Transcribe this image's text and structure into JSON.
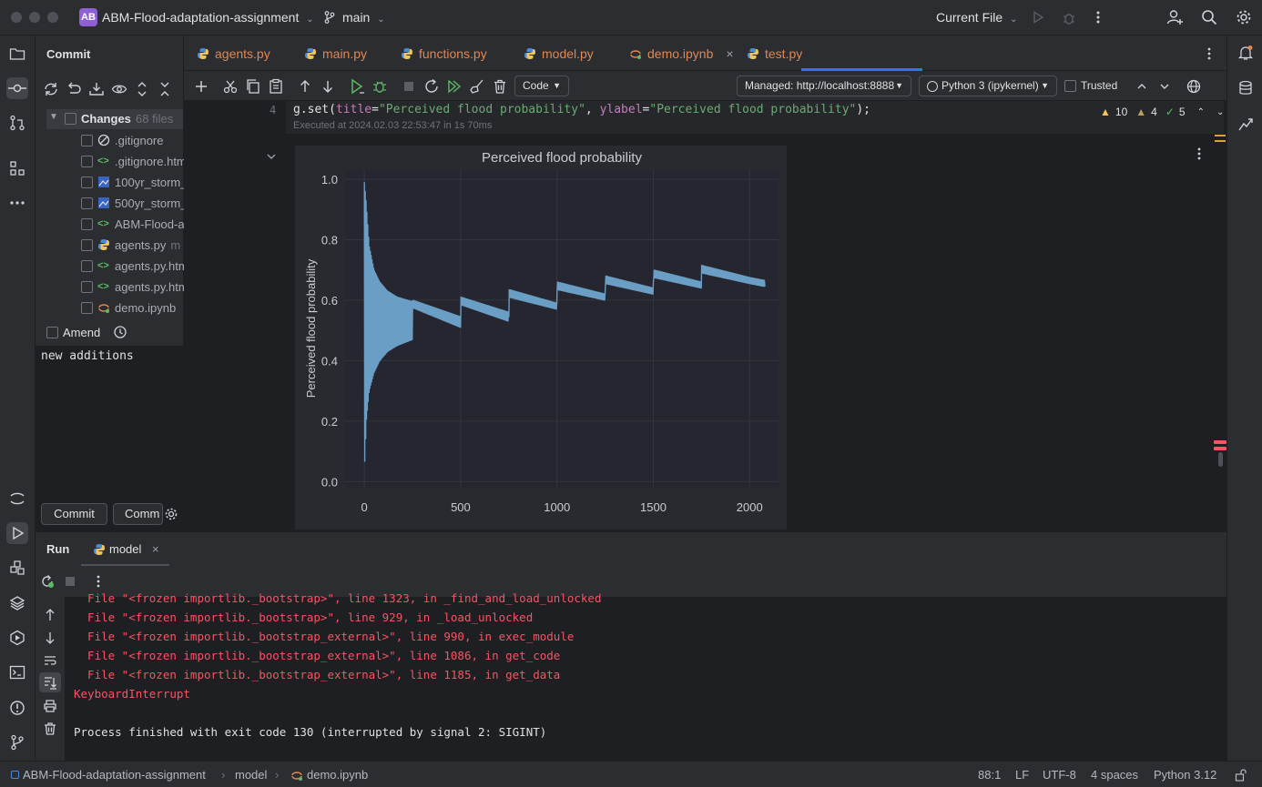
{
  "titlebar": {
    "badge": "AB",
    "project": "ABM-Flood-adaptation-assignment",
    "branch": "main",
    "run_config": "Current File"
  },
  "commit": {
    "title": "Commit",
    "changes_label": "Changes",
    "changes_count": "68 files",
    "files": [
      {
        "name": ".gitignore",
        "extra": "",
        "icon": "ignore-icon"
      },
      {
        "name": ".gitignore.htm",
        "extra": "",
        "icon": "html-icon"
      },
      {
        "name": "100yr_storm_",
        "extra": "",
        "icon": "image-icon"
      },
      {
        "name": "500yr_storm_",
        "extra": "",
        "icon": "image-icon"
      },
      {
        "name": "ABM-Flood-a",
        "extra": "",
        "icon": "html-icon"
      },
      {
        "name": "agents.py",
        "extra": "m",
        "icon": "python-icon"
      },
      {
        "name": "agents.py.htm",
        "extra": "",
        "icon": "html-icon"
      },
      {
        "name": "agents.py.htm",
        "extra": "",
        "icon": "html-icon"
      },
      {
        "name": "demo.ipynb",
        "extra": "",
        "icon": "notebook-icon"
      }
    ],
    "amend_label": "Amend",
    "message": "new additions",
    "commit_button": "Commit",
    "commit_push_button": "Comm"
  },
  "tabs": [
    {
      "label": "agents.py",
      "active": false
    },
    {
      "label": "main.py",
      "active": false
    },
    {
      "label": "functions.py",
      "active": false
    },
    {
      "label": "model.py",
      "active": false
    },
    {
      "label": "demo.ipynb",
      "active": true
    },
    {
      "label": "test.py",
      "active": false
    }
  ],
  "nb_toolbar": {
    "cell_type": "Code",
    "server": "Managed: http://localhost:8888",
    "kernel": "Python 3 (ipykernel)",
    "trusted": "Trusted"
  },
  "inspections": {
    "warnings": "10",
    "weak_warnings": "4",
    "ok": "5"
  },
  "cell": {
    "line_number": "4",
    "code_parts": [
      "g.set(",
      "title",
      "=",
      "\"Perceived flood probability\"",
      ", ",
      "ylabel",
      "=",
      "\"Perceived flood probability\"",
      ");"
    ],
    "exec_info": "Executed at 2024.02.03 22:53:47 in 1s 70ms"
  },
  "chart_data": {
    "type": "line",
    "title": "Perceived flood probability",
    "xlabel": "",
    "ylabel": "Perceived flood probability",
    "xlim": [
      -100,
      2150
    ],
    "ylim": [
      -0.02,
      1.03
    ],
    "xticks": [
      0,
      500,
      1000,
      1500,
      2000
    ],
    "yticks": [
      0.0,
      0.2,
      0.4,
      0.6,
      0.8,
      1.0
    ],
    "grid": true,
    "color": "#6a9ec4",
    "series": [
      {
        "envelope_x": [
          0,
          10,
          25,
          50,
          80,
          120,
          170,
          250,
          251,
          500,
          501,
          750,
          751,
          1000,
          1001,
          1250,
          1251,
          1500,
          1501,
          1750,
          1751,
          2000,
          2080
        ],
        "upper": [
          0.99,
          0.92,
          0.78,
          0.7,
          0.66,
          0.63,
          0.61,
          0.595,
          0.6,
          0.545,
          0.61,
          0.56,
          0.635,
          0.59,
          0.66,
          0.62,
          0.68,
          0.64,
          0.7,
          0.66,
          0.715,
          0.675,
          0.665
        ],
        "lower": [
          0.03,
          0.2,
          0.3,
          0.36,
          0.4,
          0.43,
          0.45,
          0.47,
          0.575,
          0.51,
          0.585,
          0.53,
          0.61,
          0.57,
          0.635,
          0.6,
          0.655,
          0.62,
          0.675,
          0.64,
          0.69,
          0.655,
          0.645
        ]
      }
    ]
  },
  "run": {
    "tab_title": "Run",
    "config": "model",
    "lines": [
      {
        "text": "  File \"<frozen importlib._bootstrap>\", line 1323, in _find_and_load_unlocked",
        "ok": false
      },
      {
        "text": "  File \"<frozen importlib._bootstrap>\", line 929, in _load_unlocked",
        "ok": false
      },
      {
        "text": "  File \"<frozen importlib._bootstrap_external>\", line 990, in exec_module",
        "ok": false
      },
      {
        "text": "  File \"<frozen importlib._bootstrap_external>\", line 1086, in get_code",
        "ok": false
      },
      {
        "text": "  File \"<frozen importlib._bootstrap_external>\", line 1185, in get_data",
        "ok": false
      },
      {
        "text": "KeyboardInterrupt",
        "ok": false
      },
      {
        "text": "",
        "ok": true
      },
      {
        "text": "Process finished with exit code 130 (interrupted by signal 2: SIGINT)",
        "ok": true
      }
    ]
  },
  "statusbar": {
    "crumbs": [
      "ABM-Flood-adaptation-assignment",
      "model",
      "demo.ipynb"
    ],
    "position": "88:1",
    "line_sep": "LF",
    "encoding": "UTF-8",
    "indent": "4 spaces",
    "interpreter": "Python 3.12"
  },
  "colors": {
    "accent": "#3574f0",
    "error": "#f75464",
    "warning": "#f2c55c",
    "ok": "#5fb865"
  }
}
